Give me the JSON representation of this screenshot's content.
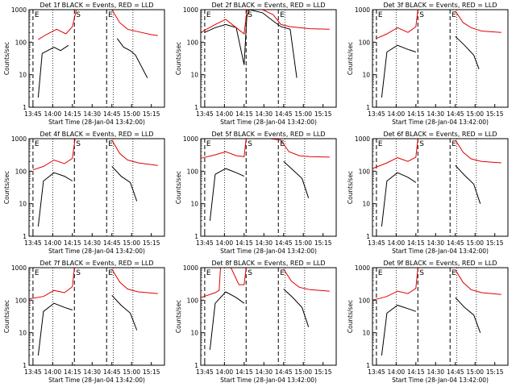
{
  "figure": {
    "x_tick_labels": [
      "13:45",
      "14:00",
      "14:15",
      "14:30",
      "14:45",
      "15:00",
      "15:15"
    ],
    "y_tick_labels": [
      "1000",
      "100",
      "10",
      "1"
    ],
    "ylabel": "Counts/sec",
    "xlabel": "Start Time (28-Jan-04 13:42:00)",
    "colors": {
      "events": "#000000",
      "lld": "#e00000",
      "axes": "#000000"
    }
  },
  "chart_data": [
    {
      "type": "line",
      "title": "Det 1f BLACK = Events, RED = LLD",
      "xlabel": "Start Time (28-Jan-04 13:42:00)",
      "ylabel": "Counts/sec",
      "x_range": [
        "13:42",
        "15:22"
      ],
      "ylim": [
        1,
        1000
      ],
      "y_scale": "log",
      "markers": [
        "E",
        "S",
        "E"
      ],
      "series": [
        {
          "name": "BLACK = Events",
          "color": "#000000",
          "x_min": [
            -15,
            4,
            7,
            16,
            21,
            27,
            31.5,
            60,
            64,
            69,
            74,
            78,
            87
          ],
          "y": [
            null,
            2,
            45,
            70,
            55,
            80,
            null,
            null,
            130,
            70,
            55,
            40,
            8
          ]
        },
        {
          "name": "RED = LLD",
          "color": "#e00000",
          "x_min": [
            -15,
            4,
            10,
            18,
            25,
            30,
            33,
            36,
            56,
            60,
            66,
            72,
            80,
            90,
            95
          ],
          "y": [
            null,
            120,
            170,
            250,
            180,
            300,
            1000,
            null,
            null,
            1000,
            400,
            250,
            210,
            170,
            160
          ]
        }
      ]
    },
    {
      "type": "line",
      "title": "Det 2f BLACK = Events, RED = LLD",
      "xlabel": "Start Time (28-Jan-04 13:42:00)",
      "ylabel": "Counts/sec",
      "x_range": [
        "13:42",
        "15:22"
      ],
      "ylim": [
        1,
        1000
      ],
      "y_scale": "log",
      "markers": [
        "E",
        "S",
        "E"
      ],
      "series": [
        {
          "name": "BLACK = Events",
          "color": "#000000",
          "x_min": [
            0,
            8,
            16,
            24,
            30,
            32,
            34,
            44,
            52,
            58,
            65,
            70
          ],
          "y": [
            200,
            280,
            350,
            280,
            20,
            600,
            1000,
            800,
            450,
            300,
            250,
            8
          ]
        },
        {
          "name": "RED = LLD",
          "color": "#e00000",
          "x_min": [
            -3,
            8,
            16,
            24,
            30,
            32,
            34,
            44,
            52,
            58,
            65,
            80,
            95
          ],
          "y": [
            200,
            350,
            500,
            280,
            180,
            900,
            1000,
            1000,
            700,
            350,
            300,
            260,
            250
          ]
        }
      ]
    },
    {
      "type": "line",
      "title": "Det 3f BLACK = Events, RED = LLD",
      "xlabel": "Start Time (28-Jan-04 13:42:00)",
      "ylabel": "Counts/sec",
      "x_range": [
        "13:42",
        "15:22"
      ],
      "ylim": [
        1,
        1000
      ],
      "y_scale": "log",
      "markers": [
        "E",
        "S",
        "E"
      ],
      "series": [
        {
          "name": "BLACK = Events",
          "color": "#000000",
          "x_min": [
            4,
            8,
            16,
            24,
            30,
            30.8,
            56,
            60,
            67,
            74,
            78
          ],
          "y": [
            2,
            50,
            80,
            60,
            50,
            null,
            null,
            150,
            80,
            40,
            15
          ]
        },
        {
          "name": "RED = LLD",
          "color": "#e00000",
          "x_min": [
            0,
            8,
            16,
            24,
            30,
            31.5,
            56,
            60,
            66,
            72,
            80,
            95
          ],
          "y": [
            130,
            180,
            280,
            200,
            300,
            1000,
            null,
            900,
            400,
            280,
            220,
            200
          ]
        }
      ]
    },
    {
      "type": "line",
      "title": "Det 4f BLACK = Events, RED = LLD",
      "xlabel": "Start Time (28-Jan-04 13:42:00)",
      "ylabel": "Counts/sec",
      "x_range": [
        "13:42",
        "15:22"
      ],
      "ylim": [
        1,
        1000
      ],
      "y_scale": "log",
      "markers": [
        "E",
        "S",
        "E"
      ],
      "series": [
        {
          "name": "BLACK = Events",
          "color": "#000000",
          "x_min": [
            4,
            8,
            16,
            24,
            30,
            31.5,
            56,
            60,
            67,
            74,
            79
          ],
          "y": [
            2,
            50,
            90,
            70,
            50,
            null,
            null,
            140,
            70,
            45,
            12
          ]
        },
        {
          "name": "RED = LLD",
          "color": "#e00000",
          "x_min": [
            0,
            8,
            16,
            24,
            30,
            32,
            56,
            60,
            66,
            72,
            80,
            95
          ],
          "y": [
            110,
            140,
            220,
            170,
            250,
            1000,
            null,
            900,
            350,
            220,
            180,
            150
          ]
        }
      ]
    },
    {
      "type": "line",
      "title": "Det 5f BLACK = Events, RED = LLD",
      "xlabel": "Start Time (28-Jan-04 13:42:00)",
      "ylabel": "Counts/sec",
      "x_range": [
        "13:42",
        "15:22"
      ],
      "ylim": [
        1,
        1000
      ],
      "y_scale": "log",
      "markers": [
        "E",
        "S",
        "E"
      ],
      "series": [
        {
          "name": "BLACK = Events",
          "color": "#000000",
          "x_min": [
            4,
            8,
            16,
            24,
            30,
            30.8,
            56,
            60,
            67,
            74,
            79
          ],
          "y": [
            3,
            80,
            120,
            90,
            70,
            null,
            null,
            200,
            110,
            60,
            15
          ]
        },
        {
          "name": "RED = LLD",
          "color": "#e00000",
          "x_min": [
            -3,
            8,
            16,
            24,
            30,
            31.5,
            34,
            50,
            58,
            64,
            72,
            80,
            95
          ],
          "y": [
            250,
            320,
            400,
            300,
            280,
            1000,
            1000,
            1000,
            900,
            400,
            300,
            280,
            270
          ]
        }
      ]
    },
    {
      "type": "line",
      "title": "Det 6f BLACK = Events, RED = LLD",
      "xlabel": "Start Time (28-Jan-04 13:42:00)",
      "ylabel": "Counts/sec",
      "x_range": [
        "13:42",
        "15:22"
      ],
      "ylim": [
        1,
        1000
      ],
      "y_scale": "log",
      "markers": [
        "E",
        "S",
        "E"
      ],
      "series": [
        {
          "name": "BLACK = Events",
          "color": "#000000",
          "x_min": [
            4,
            8,
            16,
            24,
            30,
            30.8,
            56,
            60,
            67,
            74,
            79
          ],
          "y": [
            2,
            50,
            90,
            65,
            45,
            null,
            null,
            150,
            75,
            40,
            10
          ]
        },
        {
          "name": "RED = LLD",
          "color": "#e00000",
          "x_min": [
            -3,
            8,
            16,
            24,
            30,
            31.5,
            56,
            60,
            66,
            72,
            80,
            95
          ],
          "y": [
            120,
            180,
            260,
            200,
            270,
            1000,
            null,
            900,
            380,
            240,
            200,
            180
          ]
        }
      ]
    },
    {
      "type": "line",
      "title": "Det 7f BLACK = Events, RED = LLD",
      "xlabel": "Start Time (28-Jan-04 13:42:00)",
      "ylabel": "Counts/sec",
      "x_range": [
        "13:42",
        "15:22"
      ],
      "ylim": [
        1,
        1000
      ],
      "y_scale": "log",
      "markers": [
        "E",
        "S",
        "E"
      ],
      "series": [
        {
          "name": "BLACK = Events",
          "color": "#000000",
          "x_min": [
            4,
            8,
            16,
            24,
            30,
            30.8,
            56,
            60,
            67,
            74,
            79
          ],
          "y": [
            2,
            45,
            80,
            60,
            50,
            null,
            null,
            140,
            70,
            40,
            12
          ]
        },
        {
          "name": "RED = LLD",
          "color": "#e00000",
          "x_min": [
            -3,
            8,
            16,
            24,
            30,
            31.5,
            56,
            60,
            66,
            72,
            80,
            95
          ],
          "y": [
            110,
            130,
            200,
            170,
            260,
            1000,
            null,
            900,
            360,
            220,
            180,
            160
          ]
        }
      ]
    },
    {
      "type": "line",
      "title": "Det 8f BLACK = Events, RED = LLD",
      "xlabel": "Start Time (28-Jan-04 13:42:00)",
      "ylabel": "Counts/sec",
      "x_range": [
        "13:42",
        "15:22"
      ],
      "ylim": [
        1,
        1000
      ],
      "y_scale": "log",
      "markers": [
        "E",
        "S",
        "E"
      ],
      "series": [
        {
          "name": "BLACK = Events",
          "color": "#000000",
          "x_min": [
            4,
            8,
            16,
            24,
            30,
            30.8,
            56,
            60,
            67,
            74,
            79
          ],
          "y": [
            3,
            80,
            180,
            120,
            80,
            null,
            null,
            220,
            120,
            60,
            15
          ]
        },
        {
          "name": "RED = LLD",
          "color": "#e00000",
          "x_min": [
            -3,
            8,
            11,
            12,
            20,
            26,
            30,
            31.5,
            56,
            60,
            66,
            72,
            80,
            95
          ],
          "y": [
            120,
            170,
            200,
            1000,
            1000,
            300,
            300,
            1000,
            null,
            900,
            380,
            250,
            210,
            190
          ]
        }
      ]
    },
    {
      "type": "line",
      "title": "Det 9f BLACK = Events, RED = LLD",
      "xlabel": "Start Time (28-Jan-04 13:42:00)",
      "ylabel": "Counts/sec",
      "x_range": [
        "13:42",
        "15:22"
      ],
      "ylim": [
        1,
        1000
      ],
      "y_scale": "log",
      "markers": [
        "E",
        "S",
        "E"
      ],
      "series": [
        {
          "name": "BLACK = Events",
          "color": "#000000",
          "x_min": [
            4,
            8,
            16,
            24,
            30,
            30.8,
            56,
            60,
            67,
            74,
            79
          ],
          "y": [
            2,
            40,
            70,
            55,
            45,
            null,
            null,
            120,
            60,
            35,
            10
          ]
        },
        {
          "name": "RED = LLD",
          "color": "#e00000",
          "x_min": [
            -3,
            8,
            16,
            24,
            30,
            31.5,
            56,
            60,
            66,
            72,
            80,
            95
          ],
          "y": [
            100,
            130,
            190,
            160,
            230,
            1000,
            null,
            850,
            350,
            210,
            170,
            150
          ]
        }
      ]
    }
  ]
}
